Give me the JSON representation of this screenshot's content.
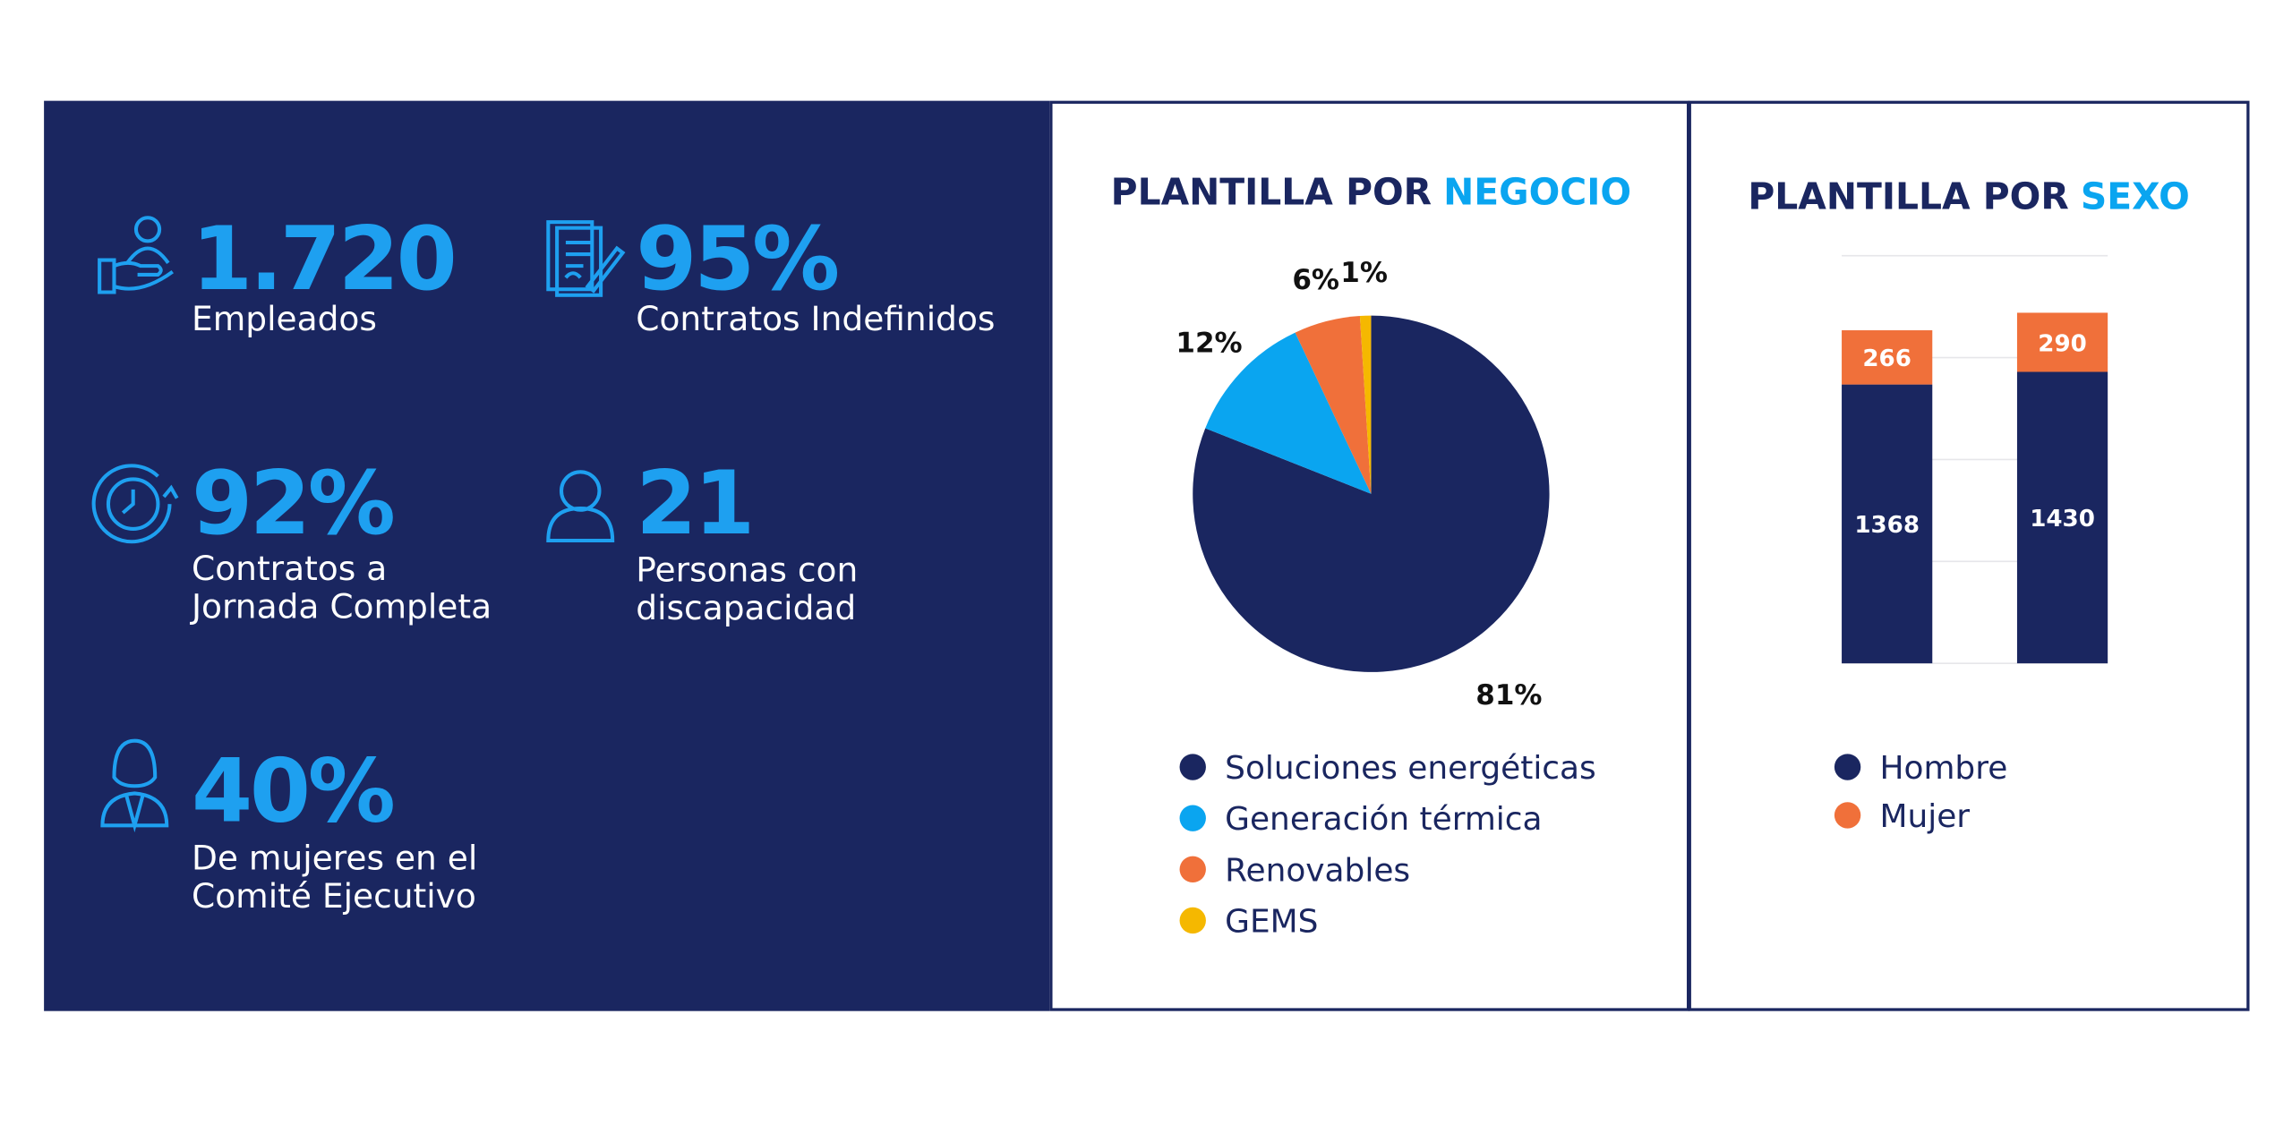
{
  "kpis": [
    {
      "value": "1.720",
      "label": [
        "Empleados"
      ]
    },
    {
      "value": "95%",
      "label": [
        "Contratos Indefinidos"
      ]
    },
    {
      "value": "92%",
      "label": [
        "Contratos a",
        "Jornada Completa"
      ]
    },
    {
      "value": "21",
      "label": [
        "Personas con",
        "discapacidad"
      ]
    },
    {
      "value": "40%",
      "label": [
        "De mujeres en el",
        "Comité Ejecutivo"
      ]
    }
  ],
  "chart_data": [
    {
      "type": "pie",
      "title": {
        "text": "PLANTILLA POR",
        "highlight": "NEGOCIO"
      },
      "categories": [
        "Soluciones energéticas",
        "Generación térmica",
        "Renovables",
        "GEMS"
      ],
      "values": [
        81,
        12,
        6,
        1
      ],
      "value_labels": [
        "81%",
        "12%",
        "6%",
        "1%"
      ],
      "colors": [
        "#1a2660",
        "#0aa5f0",
        "#f0703a",
        "#f5b800"
      ]
    },
    {
      "type": "stacked_bar",
      "title": {
        "text": "PLANTILLA POR",
        "highlight": "SEXO"
      },
      "categories": [
        null,
        null
      ],
      "series": [
        {
          "name": "Hombre",
          "color": "#1a2660",
          "values": [
            1368,
            1430
          ]
        },
        {
          "name": "Mujer",
          "color": "#f0703a",
          "values": [
            266,
            290
          ]
        }
      ],
      "ylim": [
        0,
        2000
      ],
      "yticks": [
        0,
        500,
        1000,
        1500,
        2000
      ],
      "grid": true,
      "show_tick_labels": false
    }
  ]
}
